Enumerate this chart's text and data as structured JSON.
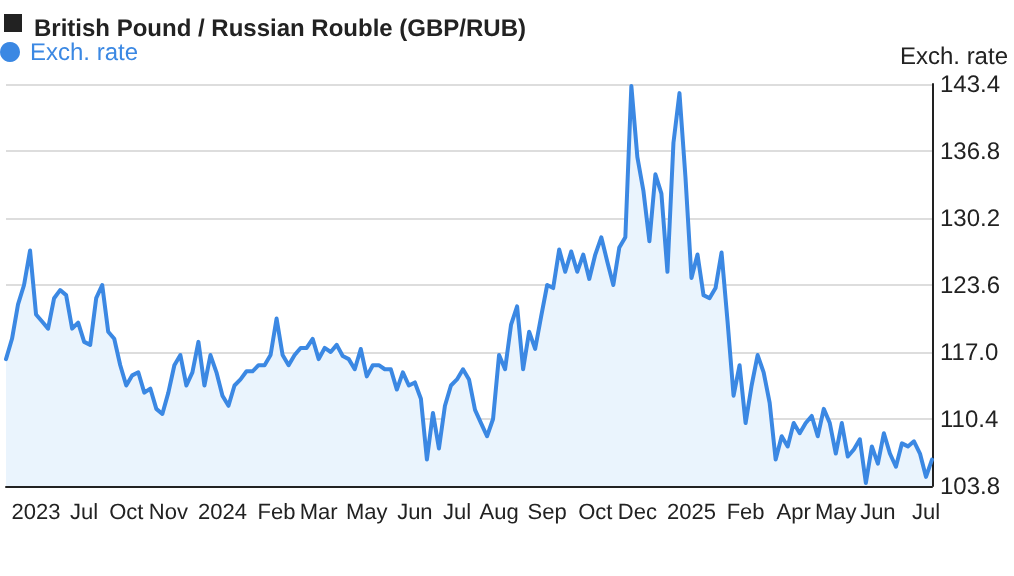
{
  "chart_data": {
    "type": "area",
    "title": "British Pound / Russian Rouble (GBP/RUB)",
    "ylabel": "Exch. rate",
    "categories": [
      null,
      null,
      null,
      null,
      null,
      "2023",
      null,
      null,
      null,
      null,
      null,
      null,
      null,
      "Jul",
      null,
      null,
      null,
      null,
      null,
      null,
      "Oct",
      null,
      null,
      null,
      null,
      null,
      null,
      "Nov",
      null,
      null,
      null,
      null,
      null,
      null,
      null,
      null,
      "2024",
      null,
      null,
      null,
      null,
      null,
      null,
      null,
      null,
      "Feb",
      null,
      null,
      null,
      null,
      null,
      null,
      "Mar",
      null,
      null,
      null,
      null,
      null,
      null,
      null,
      "May",
      null,
      null,
      null,
      null,
      null,
      null,
      null,
      "Jun",
      null,
      null,
      null,
      null,
      null,
      null,
      "Jul",
      null,
      null,
      null,
      null,
      null,
      null,
      "Aug",
      null,
      null,
      null,
      null,
      null,
      null,
      null,
      "Sep",
      null,
      null,
      null,
      null,
      null,
      null,
      null,
      "Oct",
      null,
      null,
      null,
      null,
      null,
      null,
      "Dec",
      null,
      null,
      null,
      null,
      null,
      null,
      null,
      null,
      "2025",
      null,
      null,
      null,
      null,
      null,
      null,
      null,
      null,
      "Feb",
      null,
      null,
      null,
      null,
      null,
      null,
      null,
      "Apr",
      null,
      null,
      null,
      null,
      null,
      null,
      "May",
      null,
      null,
      null,
      null,
      null,
      null,
      "Jun",
      null,
      null,
      null,
      null,
      null,
      null,
      null,
      "Jul",
      null
    ],
    "series": [
      {
        "name": "Exch. rate",
        "color": "#3b88e3",
        "values": [
          116.3,
          118.3,
          121.7,
          123.6,
          127.0,
          120.7,
          120.0,
          119.3,
          122.3,
          123.1,
          122.6,
          119.3,
          119.9,
          118.0,
          117.7,
          122.3,
          123.6,
          119.0,
          118.3,
          115.7,
          113.7,
          114.7,
          115.0,
          113.0,
          113.4,
          111.4,
          110.9,
          113.0,
          115.7,
          116.7,
          113.7,
          115.0,
          118.0,
          113.7,
          116.7,
          115.0,
          112.7,
          111.7,
          113.7,
          114.3,
          115.1,
          115.1,
          115.7,
          115.7,
          116.7,
          120.3,
          116.7,
          115.7,
          116.7,
          117.4,
          117.4,
          118.3,
          116.3,
          117.4,
          117.0,
          117.7,
          116.6,
          116.3,
          115.3,
          117.3,
          114.6,
          115.7,
          115.7,
          115.3,
          115.3,
          113.3,
          115.0,
          113.7,
          114.0,
          112.4,
          106.4,
          111.0,
          107.5,
          111.7,
          113.7,
          114.3,
          115.3,
          114.3,
          111.3,
          110.0,
          108.7,
          110.4,
          116.7,
          115.3,
          119.7,
          121.5,
          115.3,
          119.0,
          117.3,
          120.5,
          123.6,
          123.3,
          127.1,
          124.9,
          126.9,
          124.9,
          126.6,
          124.2,
          126.6,
          128.3,
          125.9,
          123.6,
          127.3,
          128.3,
          143.2,
          136.2,
          132.9,
          127.9,
          134.5,
          132.6,
          124.9,
          137.6,
          142.5,
          134.2,
          124.3,
          126.6,
          122.6,
          122.3,
          123.3,
          126.8,
          120.0,
          112.7,
          115.7,
          110.0,
          113.7,
          116.7,
          115.0,
          112.0,
          106.4,
          108.7,
          107.7,
          110.0,
          109.0,
          110.0,
          110.7,
          108.7,
          111.4,
          110.0,
          107.0,
          110.0,
          106.7,
          107.4,
          108.4,
          104.1,
          107.7,
          106.0,
          109.0,
          107.0,
          105.7,
          108.0,
          107.7,
          108.2,
          107.0,
          104.7,
          106.4
        ]
      }
    ],
    "ylim": [
      103.8,
      143.4
    ],
    "yticks": [
      103.8,
      110.4,
      {
        "value": 117,
        "label": "117.0"
      },
      123.6,
      130.2,
      136.8,
      143.4
    ],
    "grid": "y",
    "legend": "top left",
    "marker": "none"
  }
}
